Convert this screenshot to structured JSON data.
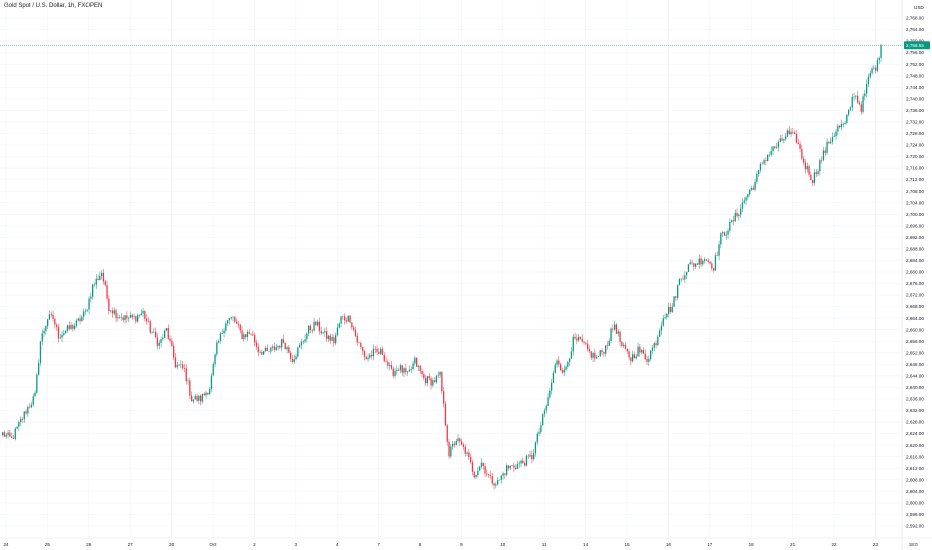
{
  "header": {
    "title": "Gold Spot / U.S. Dollar, 1h, FXOPEN"
  },
  "price_axis": {
    "currency": "USD",
    "last_price_label": "2,758.55"
  },
  "colors": {
    "up": "#089981",
    "down": "#f23645",
    "grid": "#f0f3fa",
    "last_price_line": "#089981",
    "text": "#131722"
  },
  "chart_data": {
    "type": "candlestick",
    "symbol": "Gold Spot / U.S. Dollar",
    "interval": "1h",
    "broker": "FXOPEN",
    "ylim": [
      2588,
      2774
    ],
    "y_ticks": [
      2592,
      2596,
      2600,
      2604,
      2608,
      2612,
      2616,
      2620,
      2624,
      2628,
      2632,
      2636,
      2640,
      2644,
      2648,
      2652,
      2656,
      2660,
      2664,
      2668,
      2672,
      2676,
      2680,
      2684,
      2688,
      2692,
      2696,
      2700,
      2704,
      2708,
      2712,
      2716,
      2720,
      2724,
      2728,
      2732,
      2736,
      2740,
      2744,
      2748,
      2752,
      2756,
      2760,
      2764,
      2768
    ],
    "y_tick_labels": [
      "2,592.00",
      "2,596.00",
      "2,600.00",
      "2,604.00",
      "2,608.00",
      "2,612.00",
      "2,616.00",
      "2,620.00",
      "2,624.00",
      "2,628.00",
      "2,632.00",
      "2,636.00",
      "2,640.00",
      "2,644.00",
      "2,648.00",
      "2,652.00",
      "2,656.00",
      "2,660.00",
      "2,664.00",
      "2,668.00",
      "2,672.00",
      "2,676.00",
      "2,680.00",
      "2,684.00",
      "2,688.00",
      "2,692.00",
      "2,696.00",
      "2,700.00",
      "2,704.00",
      "2,708.00",
      "2,712.00",
      "2,716.00",
      "2,720.00",
      "2,724.00",
      "2,728.00",
      "2,732.00",
      "2,736.00",
      "2,740.00",
      "2,744.00",
      "2,748.00",
      "2,752.00",
      "2,756.00",
      "2,760.00",
      "2,764.00",
      "2,768.00"
    ],
    "x_labels": [
      "24",
      "25",
      "26",
      "27",
      "30",
      "Oct",
      "2",
      "3",
      "4",
      "7",
      "8",
      "9",
      "10",
      "11",
      "14",
      "15",
      "16",
      "17",
      "18",
      "21",
      "22",
      "23",
      "18:0"
    ],
    "x_label_bar_index": [
      0,
      23,
      46,
      69,
      92,
      115,
      138,
      161,
      184,
      207,
      230,
      253,
      276,
      299,
      322,
      345,
      368,
      391,
      414,
      437,
      460,
      483,
      504
    ],
    "last_price": 2758.55,
    "anchors": [
      [
        0,
        2624
      ],
      [
        5,
        2622
      ],
      [
        9,
        2627
      ],
      [
        13,
        2632
      ],
      [
        18,
        2637
      ],
      [
        21,
        2656
      ],
      [
        25,
        2664
      ],
      [
        28,
        2664
      ],
      [
        31,
        2658
      ],
      [
        36,
        2660
      ],
      [
        41,
        2662
      ],
      [
        46,
        2666
      ],
      [
        50,
        2675
      ],
      [
        55,
        2680
      ],
      [
        59,
        2668
      ],
      [
        64,
        2665
      ],
      [
        68,
        2664
      ],
      [
        73,
        2664
      ],
      [
        78,
        2666
      ],
      [
        82,
        2660
      ],
      [
        87,
        2655
      ],
      [
        91,
        2660
      ],
      [
        96,
        2648
      ],
      [
        101,
        2646
      ],
      [
        105,
        2636
      ],
      [
        110,
        2636
      ],
      [
        115,
        2640
      ],
      [
        119,
        2654
      ],
      [
        124,
        2663
      ],
      [
        128,
        2664
      ],
      [
        133,
        2658
      ],
      [
        138,
        2659
      ],
      [
        142,
        2653
      ],
      [
        147,
        2652
      ],
      [
        152,
        2654
      ],
      [
        156,
        2656
      ],
      [
        161,
        2650
      ],
      [
        165,
        2654
      ],
      [
        170,
        2660
      ],
      [
        174,
        2662
      ],
      [
        179,
        2658
      ],
      [
        184,
        2656
      ],
      [
        188,
        2664
      ],
      [
        193,
        2664
      ],
      [
        197,
        2656
      ],
      [
        202,
        2650
      ],
      [
        206,
        2652
      ],
      [
        211,
        2652
      ],
      [
        216,
        2645
      ],
      [
        220,
        2647
      ],
      [
        225,
        2644
      ],
      [
        229,
        2649
      ],
      [
        234,
        2643
      ],
      [
        239,
        2642
      ],
      [
        243,
        2644
      ],
      [
        248,
        2617
      ],
      [
        252,
        2622
      ],
      [
        257,
        2618
      ],
      [
        262,
        2610
      ],
      [
        266,
        2614
      ],
      [
        271,
        2608
      ],
      [
        275,
        2607
      ],
      [
        280,
        2612
      ],
      [
        285,
        2613
      ],
      [
        289,
        2614
      ],
      [
        294,
        2616
      ],
      [
        299,
        2627
      ],
      [
        303,
        2636
      ],
      [
        308,
        2650
      ],
      [
        312,
        2645
      ],
      [
        317,
        2656
      ],
      [
        321,
        2656
      ],
      [
        326,
        2652
      ],
      [
        330,
        2650
      ],
      [
        335,
        2654
      ],
      [
        340,
        2662
      ],
      [
        344,
        2654
      ],
      [
        349,
        2650
      ],
      [
        353,
        2653
      ],
      [
        358,
        2650
      ],
      [
        363,
        2656
      ],
      [
        367,
        2665
      ],
      [
        372,
        2668
      ],
      [
        376,
        2677
      ],
      [
        381,
        2682
      ],
      [
        385,
        2683
      ],
      [
        390,
        2685
      ],
      [
        395,
        2682
      ],
      [
        399,
        2692
      ],
      [
        404,
        2696
      ],
      [
        408,
        2700
      ],
      [
        413,
        2706
      ],
      [
        418,
        2711
      ],
      [
        422,
        2718
      ],
      [
        427,
        2722
      ],
      [
        431,
        2724
      ],
      [
        436,
        2728
      ],
      [
        441,
        2726
      ],
      [
        445,
        2718
      ],
      [
        450,
        2712
      ],
      [
        454,
        2718
      ],
      [
        459,
        2725
      ],
      [
        464,
        2730
      ],
      [
        468,
        2731
      ],
      [
        473,
        2742
      ],
      [
        477,
        2737
      ],
      [
        482,
        2749
      ],
      [
        486,
        2752
      ],
      [
        488,
        2758.55
      ]
    ]
  }
}
